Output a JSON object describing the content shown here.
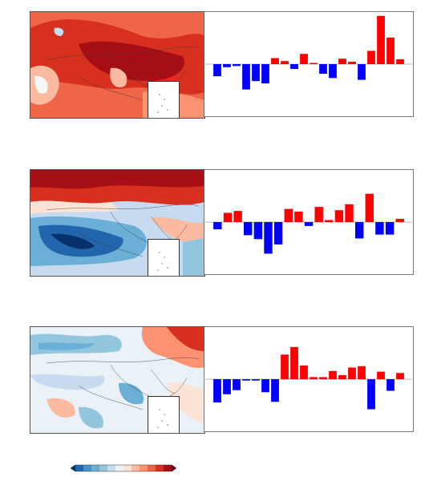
{
  "colors": {
    "positive_bar": "#ff0000",
    "negative_bar": "#0000ff",
    "map_warm_dark": "#a50f15",
    "map_warm_mid": "#de2d26",
    "map_warm_light": "#fcae91",
    "map_neutral": "#f7f7f7",
    "map_cool_light": "#c6dbef",
    "map_cool_mid": "#6baed6",
    "map_cool_dark": "#2166ac"
  },
  "colorbar": {
    "colors": [
      "#08306b",
      "#2166ac",
      "#4393c3",
      "#6baed6",
      "#92c5de",
      "#c6dbef",
      "#eaf2f8",
      "#fbe3d6",
      "#fcbba1",
      "#fc9272",
      "#ef6548",
      "#d7301f",
      "#a50f15",
      "#67000d"
    ]
  },
  "panels": [
    {
      "map_pattern": "warm",
      "chart_data": {
        "type": "bar",
        "values": [
          -2,
          -0.5,
          -0.3,
          -4.2,
          -2.8,
          -3.2,
          1.0,
          0.5,
          -0.8,
          1.7,
          0.2,
          -1.6,
          -2.3,
          0.9,
          0.4,
          -2.6,
          2.2,
          8.0,
          4.4,
          0.8
        ],
        "ylim": [
          -8.5,
          8.5
        ]
      }
    },
    {
      "map_pattern": "north-warm-south-cool",
      "chart_data": {
        "type": "bar",
        "values": [
          -1.1,
          1.4,
          1.7,
          -2.0,
          -2.6,
          -4.8,
          -3.4,
          2.0,
          1.6,
          -0.6,
          2.3,
          0.3,
          1.8,
          2.7,
          -2.5,
          4.3,
          -1.9,
          -1.9,
          0.5
        ],
        "ylim": [
          -7.8,
          7.8
        ]
      }
    },
    {
      "map_pattern": "mostly-cool",
      "chart_data": {
        "type": "bar",
        "values": [
          -3.4,
          -2.2,
          -1.6,
          -0.2,
          -0.2,
          -1.9,
          -3.3,
          3.6,
          4.7,
          2.0,
          0.3,
          0.3,
          1.2,
          0.6,
          1.7,
          1.9,
          -4.4,
          1.1,
          -1.7,
          0.9
        ],
        "ylim": [
          -7.5,
          7.5
        ]
      }
    }
  ]
}
